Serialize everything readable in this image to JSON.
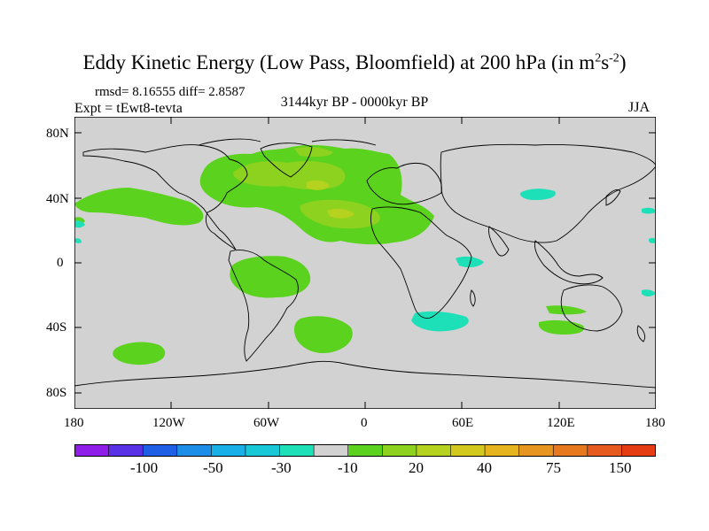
{
  "title": {
    "main": "Eddy Kinetic Energy (Low Pass, Bloomfield) at 200 hPa (in m",
    "sup1": "2",
    "mid": "s",
    "sup2": "-2",
    "end": ")"
  },
  "stats": "rmsd= 8.16555 diff= 2.8587",
  "experiment": "Expt = tEwt8-tevta",
  "period": "3144kyr BP - 0000kyr BP",
  "season": "JJA",
  "lat_labels": [
    "80N",
    "40N",
    "0",
    "40S",
    "80S"
  ],
  "lon_labels": [
    "180",
    "120W",
    "60W",
    "0",
    "60E",
    "120E",
    "180"
  ],
  "colorbar": {
    "labels": [
      "-100",
      "-50",
      "-30",
      "-10",
      "20",
      "40",
      "75",
      "150"
    ],
    "colors": [
      "#8f1ee8",
      "#5a32e6",
      "#1e5fe6",
      "#1c8ee8",
      "#19b0e8",
      "#18c8d6",
      "#1ee0b8",
      "#d2d2d2",
      "#5ad21e",
      "#8cd21e",
      "#b4d21e",
      "#d2c81e",
      "#e6b41e",
      "#e6961e",
      "#e6781e",
      "#e65a1e",
      "#e63c14"
    ]
  },
  "colors": {
    "land_bg": "#d2d2d2",
    "pos_low": "#5ad21e",
    "pos_mid": "#8cd21e",
    "pos_high": "#b4d21e",
    "neg_low": "#1ee0b8"
  }
}
